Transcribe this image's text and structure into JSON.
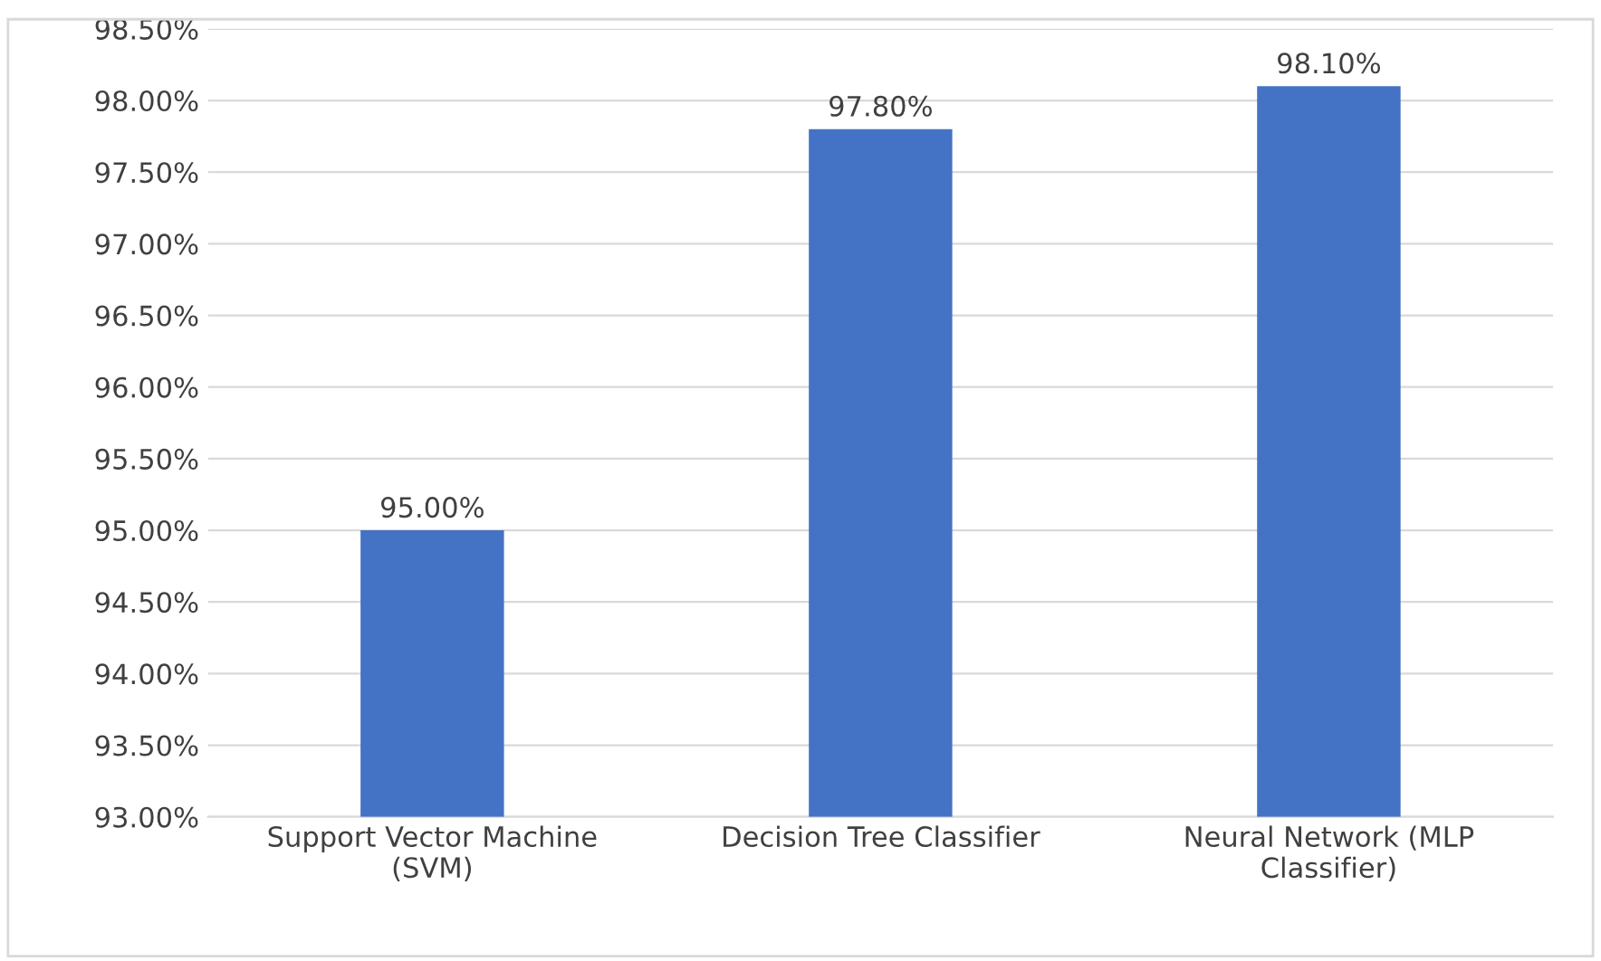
{
  "chart_data": {
    "type": "bar",
    "categories": [
      "Support Vector Machine\n(SVM)",
      "Decision Tree Classifier",
      "Neural Network (MLP\nClassifier)"
    ],
    "values": [
      95.0,
      97.8,
      98.1
    ],
    "color": "#4472c4",
    "value_labels": [
      "95.00%",
      "97.80%",
      "98.10%"
    ],
    "ylim": [
      93,
      98.5
    ],
    "yticks": [
      {
        "value": 93,
        "label": "93.00%"
      },
      {
        "value": 93.5,
        "label": "93.50%"
      },
      {
        "value": 94,
        "label": "94.00%"
      },
      {
        "value": 94.5,
        "label": "94.50%"
      },
      {
        "value": 95,
        "label": "95.00%"
      },
      {
        "value": 95.5,
        "label": "95.50%"
      },
      {
        "value": 96,
        "label": "96.00%"
      },
      {
        "value": 96.5,
        "label": "96.50%"
      },
      {
        "value": 97,
        "label": "97.00%"
      },
      {
        "value": 97.5,
        "label": "97.50%"
      },
      {
        "value": 98,
        "label": "98.00%"
      },
      {
        "value": 98.5,
        "label": "98.50%"
      }
    ],
    "grid": "y"
  }
}
